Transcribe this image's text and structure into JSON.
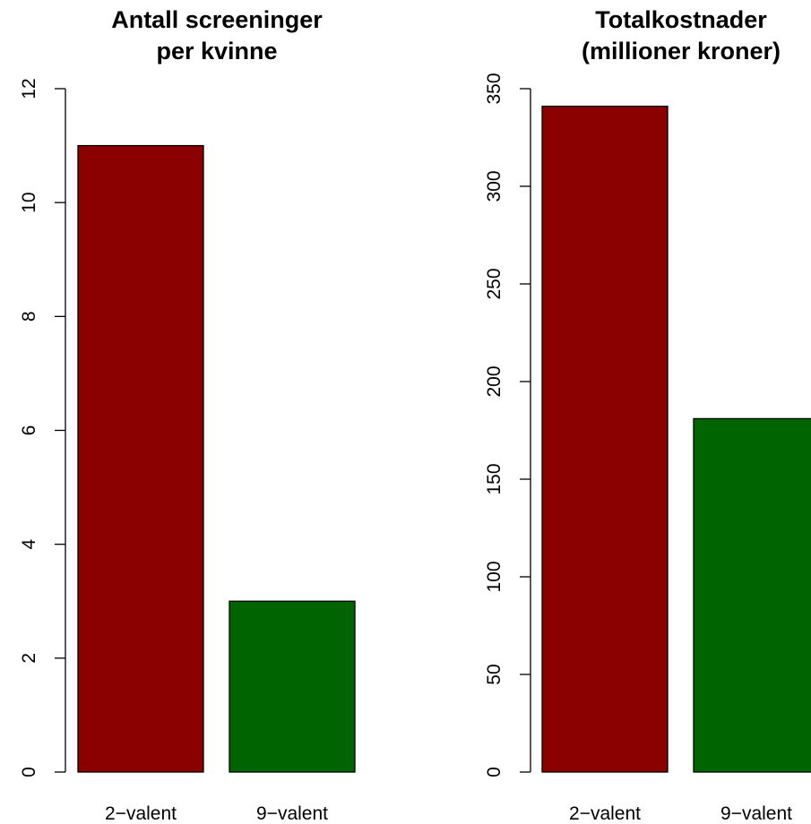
{
  "chart_data": [
    {
      "type": "bar",
      "title_lines": [
        "Antall screeninger",
        "per kvinne"
      ],
      "categories": [
        "2−valent",
        "9−valent"
      ],
      "values": [
        11,
        3
      ],
      "colors": [
        "#8b0000",
        "#006400"
      ],
      "ylim": [
        0,
        12
      ],
      "yticks": [
        0,
        2,
        4,
        6,
        8,
        10,
        12
      ],
      "ytick_labels": [
        "0",
        "2",
        "4",
        "6",
        "8",
        "10",
        "12"
      ],
      "xlabel": "",
      "ylabel": "",
      "grid": false,
      "legend": "none"
    },
    {
      "type": "bar",
      "title_lines": [
        "Totalkostnader",
        "(millioner kroner)"
      ],
      "categories": [
        "2−valent",
        "9−valent"
      ],
      "values": [
        341,
        181
      ],
      "colors": [
        "#8b0000",
        "#006400"
      ],
      "ylim": [
        0,
        350
      ],
      "yticks": [
        0,
        50,
        100,
        150,
        200,
        250,
        300,
        350
      ],
      "ytick_labels": [
        "0",
        "50",
        "100",
        "150",
        "200",
        "250",
        "300",
        "350"
      ],
      "xlabel": "",
      "ylabel": "",
      "grid": false,
      "legend": "none"
    }
  ]
}
